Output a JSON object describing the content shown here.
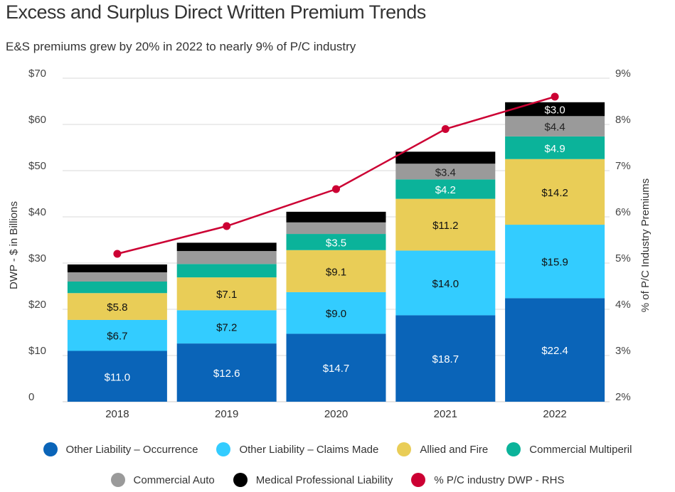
{
  "title": "Excess and Surplus Direct Written Premium Trends",
  "subtitle": "E&S premiums grew by 20% in 2022 to nearly 9% of P/C industry",
  "chart_data": {
    "type": "bar",
    "stacked": true,
    "categories": [
      "2018",
      "2019",
      "2020",
      "2021",
      "2022"
    ],
    "ylabel": "DWP - $ in Billions",
    "ylabel_right": "% of P/C Industry Premiums",
    "ylim": [
      0,
      70
    ],
    "yticks": [
      "0",
      "$10",
      "$20",
      "$30",
      "$40",
      "$50",
      "$60",
      "$70"
    ],
    "ylim_right": [
      2,
      9
    ],
    "yticks_right": [
      "2%",
      "3%",
      "4%",
      "5%",
      "6%",
      "7%",
      "8%",
      "9%"
    ],
    "series": [
      {
        "name": "Other Liability – Occurrence",
        "color": "#0a64b8",
        "label_color": "#fff",
        "values": [
          11.0,
          12.6,
          14.7,
          18.7,
          22.4
        ],
        "labels": [
          "$11.0",
          "$12.6",
          "$14.7",
          "$18.7",
          "$22.4"
        ]
      },
      {
        "name": "Other Liability – Claims Made",
        "color": "#33ccff",
        "label_color": "#111",
        "values": [
          6.7,
          7.2,
          9.0,
          14.0,
          15.9
        ],
        "labels": [
          "$6.7",
          "$7.2",
          "$9.0",
          "$14.0",
          "$15.9"
        ]
      },
      {
        "name": "Allied and Fire",
        "color": "#e9cd57",
        "label_color": "#111",
        "values": [
          5.8,
          7.1,
          9.1,
          11.2,
          14.2
        ],
        "labels": [
          "$5.8",
          "$7.1",
          "$9.1",
          "$11.2",
          "$14.2"
        ]
      },
      {
        "name": "Commercial Multiperil",
        "color": "#0bb39a",
        "label_color": "#fff",
        "values": [
          2.5,
          2.9,
          3.5,
          4.2,
          4.9
        ],
        "labels": [
          "",
          "",
          "$3.5",
          "$4.2",
          "$4.9"
        ]
      },
      {
        "name": "Commercial Auto",
        "color": "#9a9a9a",
        "label_color": "#222",
        "values": [
          2.0,
          2.8,
          2.5,
          3.4,
          4.4
        ],
        "labels": [
          "",
          "",
          "",
          "$3.4",
          "$4.4"
        ]
      },
      {
        "name": "Medical Professional Liability",
        "color": "#000000",
        "label_color": "#fff",
        "values": [
          1.7,
          1.8,
          2.3,
          2.6,
          3.0
        ],
        "labels": [
          "",
          "",
          "",
          "",
          "$3.0"
        ]
      }
    ],
    "line": {
      "name": "% P/C industry DWP - RHS",
      "color": "#cc0033",
      "axis": "right",
      "values": [
        5.2,
        5.8,
        6.6,
        7.9,
        8.6
      ]
    }
  }
}
